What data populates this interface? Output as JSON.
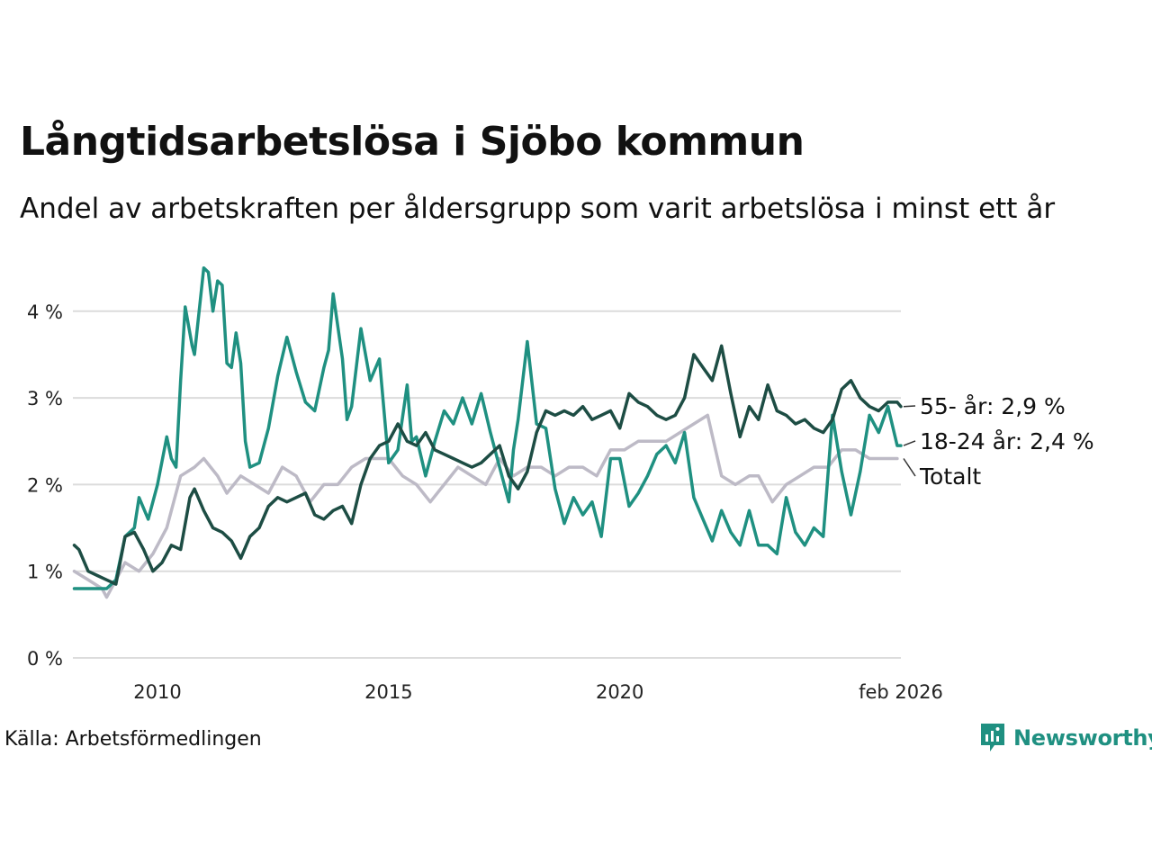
{
  "title": "Långtidsarbetslösa i Sjöbo kommun",
  "subtitle": "Andel av arbetskraften per åldersgrupp som varit arbetslösa i minst ett år",
  "source": "Källa: Arbetsförmedlingen",
  "brand": "Newsworthy",
  "colors": {
    "series_55": "#1d4d44",
    "series_18_24": "#1f9081",
    "series_total": "#bdbac6",
    "grid": "#dcdcdc",
    "brand": "#1f9081"
  },
  "chart_data": {
    "type": "line",
    "title": "Långtidsarbetslösa i Sjöbo kommun",
    "xlabel": "",
    "ylabel": "",
    "xlim": [
      2008.17,
      2026.08
    ],
    "ylim": [
      0,
      4.6
    ],
    "y_ticks": [
      {
        "value": 0,
        "label": "0 %"
      },
      {
        "value": 1,
        "label": "1 %"
      },
      {
        "value": 2,
        "label": "2 %"
      },
      {
        "value": 3,
        "label": "3 %"
      },
      {
        "value": 4,
        "label": "4 %"
      }
    ],
    "x_ticks": [
      {
        "value": 2010,
        "label": "2010"
      },
      {
        "value": 2015,
        "label": "2015"
      },
      {
        "value": 2020,
        "label": "2020"
      },
      {
        "value": 2026.08,
        "label": "feb 2026"
      }
    ],
    "series": [
      {
        "name": "Totalt",
        "label": "Totalt",
        "color": "#bdbac6",
        "x": [
          2008.2,
          2008.5,
          2008.8,
          2008.9,
          2009.1,
          2009.3,
          2009.6,
          2009.9,
          2010.2,
          2010.5,
          2010.8,
          2011.0,
          2011.3,
          2011.5,
          2011.8,
          2012.1,
          2012.4,
          2012.7,
          2013.0,
          2013.3,
          2013.6,
          2013.9,
          2014.2,
          2014.5,
          2014.8,
          2015.0,
          2015.3,
          2015.6,
          2015.9,
          2016.2,
          2016.5,
          2016.8,
          2017.1,
          2017.4,
          2017.7,
          2018.0,
          2018.3,
          2018.6,
          2018.9,
          2019.2,
          2019.5,
          2019.8,
          2020.1,
          2020.4,
          2020.7,
          2021.0,
          2021.3,
          2021.6,
          2021.9,
          2022.2,
          2022.5,
          2022.8,
          2023.0,
          2023.3,
          2023.6,
          2023.9,
          2024.2,
          2024.5,
          2024.8,
          2025.1,
          2025.4,
          2025.7,
          2026.0
        ],
        "values": [
          1.0,
          0.9,
          0.8,
          0.7,
          0.9,
          1.1,
          1.0,
          1.2,
          1.5,
          2.1,
          2.2,
          2.3,
          2.1,
          1.9,
          2.1,
          2.0,
          1.9,
          2.2,
          2.1,
          1.8,
          2.0,
          2.0,
          2.2,
          2.3,
          2.3,
          2.3,
          2.1,
          2.0,
          1.8,
          2.0,
          2.2,
          2.1,
          2.0,
          2.3,
          2.1,
          2.2,
          2.2,
          2.1,
          2.2,
          2.2,
          2.1,
          2.4,
          2.4,
          2.5,
          2.5,
          2.5,
          2.6,
          2.7,
          2.8,
          2.1,
          2.0,
          2.1,
          2.1,
          1.8,
          2.0,
          2.1,
          2.2,
          2.2,
          2.4,
          2.4,
          2.3,
          2.3,
          2.3
        ]
      },
      {
        "name": "18-24 år",
        "label": "18-24 år: 2,4 %",
        "color": "#1f9081",
        "x": [
          2008.2,
          2008.5,
          2008.8,
          2008.9,
          2009.1,
          2009.3,
          2009.5,
          2009.6,
          2009.8,
          2010.0,
          2010.2,
          2010.3,
          2010.4,
          2010.5,
          2010.6,
          2010.75,
          2010.8,
          2011.0,
          2011.1,
          2011.2,
          2011.3,
          2011.4,
          2011.5,
          2011.6,
          2011.7,
          2011.8,
          2011.9,
          2012.0,
          2012.2,
          2012.4,
          2012.6,
          2012.8,
          2013.0,
          2013.2,
          2013.4,
          2013.6,
          2013.7,
          2013.8,
          2014.0,
          2014.1,
          2014.2,
          2014.4,
          2014.6,
          2014.8,
          2015.0,
          2015.2,
          2015.4,
          2015.5,
          2015.6,
          2015.8,
          2016.0,
          2016.2,
          2016.4,
          2016.6,
          2016.8,
          2017.0,
          2017.2,
          2017.4,
          2017.6,
          2017.7,
          2017.8,
          2018.0,
          2018.2,
          2018.4,
          2018.6,
          2018.8,
          2019.0,
          2019.2,
          2019.4,
          2019.6,
          2019.8,
          2020.0,
          2020.2,
          2020.4,
          2020.6,
          2020.8,
          2021.0,
          2021.2,
          2021.4,
          2021.6,
          2021.8,
          2022.0,
          2022.2,
          2022.4,
          2022.6,
          2022.8,
          2023.0,
          2023.2,
          2023.4,
          2023.6,
          2023.8,
          2024.0,
          2024.2,
          2024.4,
          2024.6,
          2024.8,
          2025.0,
          2025.2,
          2025.4,
          2025.6,
          2025.8,
          2026.0,
          2026.08
        ],
        "values": [
          0.8,
          0.8,
          0.8,
          0.8,
          0.9,
          1.4,
          1.5,
          1.85,
          1.6,
          2.0,
          2.55,
          2.3,
          2.2,
          3.2,
          4.05,
          3.6,
          3.5,
          4.5,
          4.45,
          4.0,
          4.35,
          4.3,
          3.4,
          3.35,
          3.75,
          3.4,
          2.5,
          2.2,
          2.25,
          2.65,
          3.25,
          3.7,
          3.3,
          2.95,
          2.85,
          3.35,
          3.55,
          4.2,
          3.45,
          2.75,
          2.9,
          3.8,
          3.2,
          3.45,
          2.25,
          2.4,
          3.15,
          2.5,
          2.55,
          2.1,
          2.5,
          2.85,
          2.7,
          3.0,
          2.7,
          3.05,
          2.6,
          2.2,
          1.8,
          2.4,
          2.75,
          3.65,
          2.7,
          2.65,
          1.95,
          1.55,
          1.85,
          1.65,
          1.8,
          1.4,
          2.3,
          2.3,
          1.75,
          1.9,
          2.1,
          2.35,
          2.45,
          2.25,
          2.6,
          1.85,
          1.6,
          1.35,
          1.7,
          1.45,
          1.3,
          1.7,
          1.3,
          1.3,
          1.2,
          1.85,
          1.45,
          1.3,
          1.5,
          1.4,
          2.8,
          2.15,
          1.65,
          2.15,
          2.8,
          2.6,
          2.9,
          2.45,
          2.45
        ]
      },
      {
        "name": "55- år",
        "label": "55- år: 2,9 %",
        "color": "#1d4d44",
        "x": [
          2008.2,
          2008.3,
          2008.5,
          2008.7,
          2008.9,
          2009.1,
          2009.3,
          2009.5,
          2009.7,
          2009.9,
          2010.1,
          2010.3,
          2010.5,
          2010.7,
          2010.8,
          2011.0,
          2011.2,
          2011.4,
          2011.6,
          2011.8,
          2012.0,
          2012.2,
          2012.4,
          2012.6,
          2012.8,
          2013.0,
          2013.2,
          2013.4,
          2013.6,
          2013.8,
          2014.0,
          2014.2,
          2014.4,
          2014.6,
          2014.8,
          2015.0,
          2015.2,
          2015.4,
          2015.6,
          2015.8,
          2016.0,
          2016.2,
          2016.4,
          2016.6,
          2016.8,
          2017.0,
          2017.2,
          2017.4,
          2017.6,
          2017.8,
          2018.0,
          2018.2,
          2018.4,
          2018.6,
          2018.8,
          2019.0,
          2019.2,
          2019.4,
          2019.6,
          2019.8,
          2020.0,
          2020.2,
          2020.4,
          2020.6,
          2020.8,
          2021.0,
          2021.2,
          2021.4,
          2021.6,
          2021.8,
          2022.0,
          2022.2,
          2022.4,
          2022.6,
          2022.8,
          2023.0,
          2023.2,
          2023.4,
          2023.6,
          2023.8,
          2024.0,
          2024.2,
          2024.4,
          2024.6,
          2024.8,
          2025.0,
          2025.2,
          2025.4,
          2025.6,
          2025.8,
          2026.0,
          2026.08
        ],
        "values": [
          1.3,
          1.25,
          1.0,
          0.95,
          0.9,
          0.85,
          1.4,
          1.45,
          1.25,
          1.0,
          1.1,
          1.3,
          1.25,
          1.85,
          1.95,
          1.7,
          1.5,
          1.45,
          1.35,
          1.15,
          1.4,
          1.5,
          1.75,
          1.85,
          1.8,
          1.85,
          1.9,
          1.65,
          1.6,
          1.7,
          1.75,
          1.55,
          2.0,
          2.3,
          2.45,
          2.5,
          2.7,
          2.5,
          2.45,
          2.6,
          2.4,
          2.35,
          2.3,
          2.25,
          2.2,
          2.25,
          2.35,
          2.45,
          2.1,
          1.95,
          2.15,
          2.6,
          2.85,
          2.8,
          2.85,
          2.8,
          2.9,
          2.75,
          2.8,
          2.85,
          2.65,
          3.05,
          2.95,
          2.9,
          2.8,
          2.75,
          2.8,
          3.0,
          3.5,
          3.35,
          3.2,
          3.6,
          3.05,
          2.55,
          2.9,
          2.75,
          3.15,
          2.85,
          2.8,
          2.7,
          2.75,
          2.65,
          2.6,
          2.75,
          3.1,
          3.2,
          3.0,
          2.9,
          2.85,
          2.95,
          2.95,
          2.9
        ]
      }
    ]
  }
}
